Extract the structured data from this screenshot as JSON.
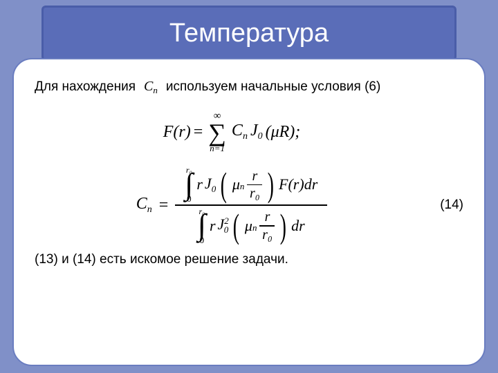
{
  "colors": {
    "page_bg": "#8090c8",
    "banner_bg": "#5a6db8",
    "banner_border": "#4a5da8",
    "panel_bg": "#ffffff",
    "panel_border": "#6a7dc0",
    "text": "#000000",
    "title_text": "#ffffff"
  },
  "title": "Температура",
  "intro": {
    "before": "Для нахождения",
    "symbol_base": "C",
    "symbol_sub": "n",
    "after": "используем начальные условия (6)"
  },
  "formula1": {
    "lhs": "F(r)",
    "eq": "=",
    "sum_top": "∞",
    "sum_bot": "n=1",
    "term_C": "C",
    "term_Csub": "n",
    "term_J": "J",
    "term_Jsub": "0",
    "term_arg": "(μR);"
  },
  "formula2": {
    "lhs_C": "C",
    "lhs_Csub": "n",
    "eq": "=",
    "num": {
      "lim_top": "r₀",
      "lim_bot": "0",
      "r": "r",
      "J": "J",
      "Jsub": "0",
      "mu": "μ",
      "musub": "n",
      "frac_top": "r",
      "frac_bot": "r₀",
      "tail": "F(r)dr"
    },
    "den": {
      "lim_top": "r₀",
      "lim_bot": "0",
      "r": "r",
      "J": "J",
      "Jsup": "2",
      "Jsub": "0",
      "mu": "μ",
      "musub": "n",
      "frac_top": "r",
      "frac_bot": "r₀",
      "tail": "dr"
    },
    "label": "(14)"
  },
  "closing": "(13) и (14) есть искомое решение задачи."
}
